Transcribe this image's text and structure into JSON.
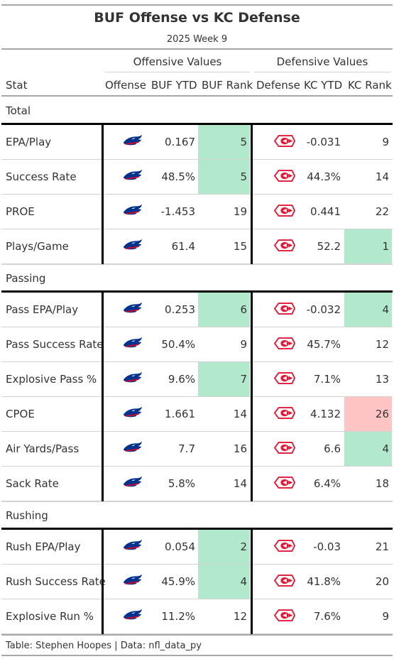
{
  "title": "BUF Offense vs KC Defense",
  "subtitle": "2025 Week 9",
  "spanners": {
    "offense": "Offensive Values",
    "defense": "Defensive Values"
  },
  "columns": {
    "stat": "Stat",
    "offense": "Offense",
    "off_ytd": "BUF YTD",
    "off_rank": "BUF Rank",
    "defense": "Defense",
    "def_ytd": "KC YTD",
    "def_rank": "KC Rank"
  },
  "colors": {
    "good": "#b2e8cc",
    "bad": "#ffc4c4",
    "bills_blue": "#00338D",
    "bills_red": "#C60C30",
    "chiefs_red": "#E31837"
  },
  "groups": [
    {
      "name": "Total",
      "rows": [
        {
          "stat": "EPA/Play",
          "off_ytd": "0.167",
          "off_rank": "5",
          "off_hl": "good",
          "def_ytd": "-0.031",
          "def_rank": "9",
          "def_hl": ""
        },
        {
          "stat": "Success Rate",
          "off_ytd": "48.5%",
          "off_rank": "5",
          "off_hl": "good",
          "def_ytd": "44.3%",
          "def_rank": "14",
          "def_hl": ""
        },
        {
          "stat": "PROE",
          "off_ytd": "-1.453",
          "off_rank": "19",
          "off_hl": "",
          "def_ytd": "0.441",
          "def_rank": "22",
          "def_hl": ""
        },
        {
          "stat": "Plays/Game",
          "off_ytd": "61.4",
          "off_rank": "15",
          "off_hl": "",
          "def_ytd": "52.2",
          "def_rank": "1",
          "def_hl": "good"
        }
      ]
    },
    {
      "name": "Passing",
      "rows": [
        {
          "stat": "Pass EPA/Play",
          "off_ytd": "0.253",
          "off_rank": "6",
          "off_hl": "good",
          "def_ytd": "-0.032",
          "def_rank": "4",
          "def_hl": "good"
        },
        {
          "stat": "Pass Success Rate",
          "off_ytd": "50.4%",
          "off_rank": "9",
          "off_hl": "",
          "def_ytd": "45.7%",
          "def_rank": "12",
          "def_hl": ""
        },
        {
          "stat": "Explosive Pass %",
          "off_ytd": "9.6%",
          "off_rank": "7",
          "off_hl": "good",
          "def_ytd": "7.1%",
          "def_rank": "13",
          "def_hl": ""
        },
        {
          "stat": "CPOE",
          "off_ytd": "1.661",
          "off_rank": "14",
          "off_hl": "",
          "def_ytd": "4.132",
          "def_rank": "26",
          "def_hl": "bad"
        },
        {
          "stat": "Air Yards/Pass",
          "off_ytd": "7.7",
          "off_rank": "16",
          "off_hl": "",
          "def_ytd": "6.6",
          "def_rank": "4",
          "def_hl": "good"
        },
        {
          "stat": "Sack Rate",
          "off_ytd": "5.8%",
          "off_rank": "14",
          "off_hl": "",
          "def_ytd": "6.4%",
          "def_rank": "18",
          "def_hl": ""
        }
      ]
    },
    {
      "name": "Rushing",
      "rows": [
        {
          "stat": "Rush EPA/Play",
          "off_ytd": "0.054",
          "off_rank": "2",
          "off_hl": "good",
          "def_ytd": "-0.03",
          "def_rank": "21",
          "def_hl": ""
        },
        {
          "stat": "Rush Success Rate",
          "off_ytd": "45.9%",
          "off_rank": "4",
          "off_hl": "good",
          "def_ytd": "41.8%",
          "def_rank": "20",
          "def_hl": ""
        },
        {
          "stat": "Explosive Run %",
          "off_ytd": "11.2%",
          "off_rank": "12",
          "off_hl": "",
          "def_ytd": "7.6%",
          "def_rank": "9",
          "def_hl": ""
        }
      ]
    }
  ],
  "footer": "Table: Stephen Hoopes | Data: nfl_data_py"
}
